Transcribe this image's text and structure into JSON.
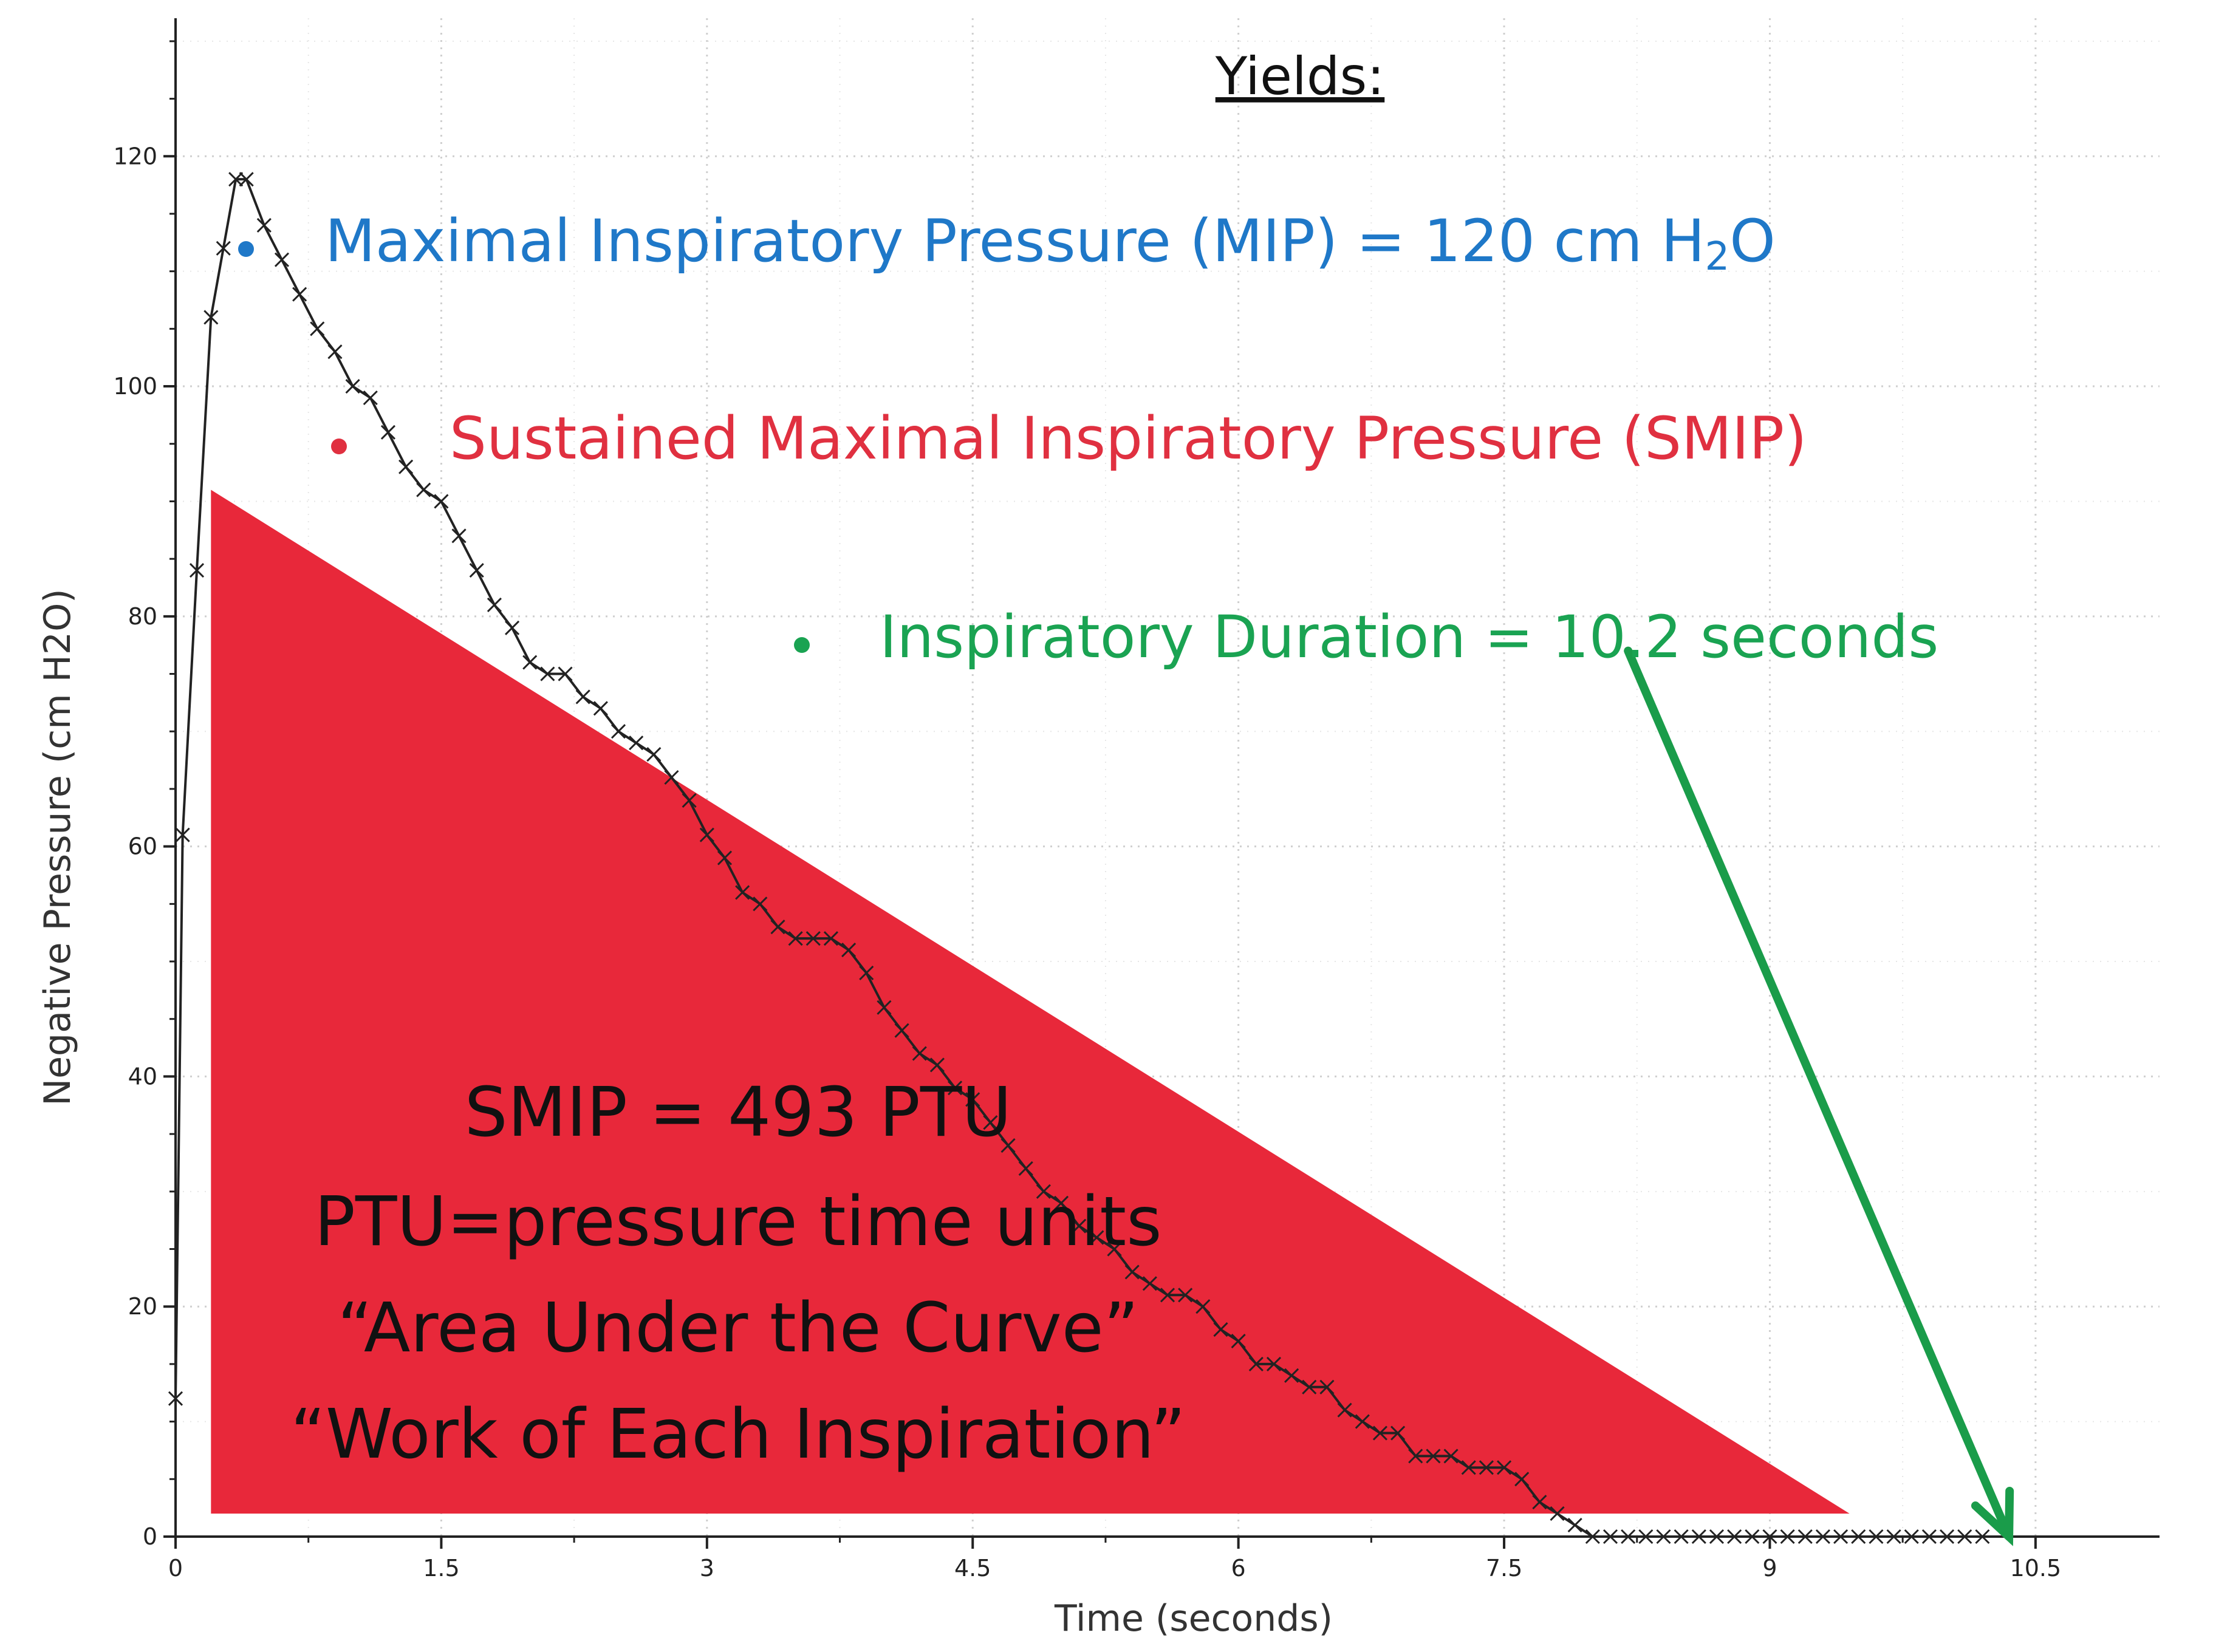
{
  "chart_data": {
    "type": "line",
    "title": "",
    "xlabel": "Time (seconds)",
    "ylabel": "Negative Pressure (cm H2O)",
    "xlim": [
      0,
      11.2
    ],
    "ylim": [
      0,
      132
    ],
    "xticks": [
      0,
      1.5,
      3,
      4.5,
      6,
      7.5,
      9,
      10.5
    ],
    "xtick_labels": [
      "0",
      "1.5",
      "3",
      "4.5",
      "6",
      "7.5",
      "9",
      "10.5"
    ],
    "yticks": [
      0,
      20,
      40,
      60,
      80,
      100,
      120
    ],
    "ytick_labels": [
      "0",
      "20",
      "40",
      "60",
      "80",
      "100",
      "120"
    ],
    "grid": true,
    "series": [
      {
        "name": "Negative Pressure",
        "color": "#222222",
        "marker": "x",
        "x": [
          0,
          0.04,
          0.12,
          0.2,
          0.27,
          0.34,
          0.4,
          0.5,
          0.6,
          0.7,
          0.8,
          0.9,
          1.0,
          1.1,
          1.2,
          1.3,
          1.4,
          1.5,
          1.6,
          1.7,
          1.8,
          1.9,
          2.0,
          2.1,
          2.2,
          2.3,
          2.4,
          2.5,
          2.6,
          2.7,
          2.8,
          2.9,
          3.0,
          3.1,
          3.2,
          3.3,
          3.4,
          3.5,
          3.6,
          3.7,
          3.8,
          3.9,
          4.0,
          4.1,
          4.2,
          4.3,
          4.4,
          4.5,
          4.6,
          4.7,
          4.8,
          4.9,
          5.0,
          5.1,
          5.2,
          5.3,
          5.4,
          5.5,
          5.6,
          5.7,
          5.8,
          5.9,
          6.0,
          6.1,
          6.2,
          6.3,
          6.4,
          6.5,
          6.6,
          6.7,
          6.8,
          6.9,
          7.0,
          7.1,
          7.2,
          7.3,
          7.4,
          7.5,
          7.6,
          7.7,
          7.8,
          7.9,
          8.0,
          8.1,
          8.2,
          8.3,
          8.4,
          8.5,
          8.6,
          8.7,
          8.8,
          8.9,
          9.0,
          9.1,
          9.2,
          9.3,
          9.4,
          9.5,
          9.6,
          9.7,
          9.8,
          9.9,
          10.0,
          10.1,
          10.2
        ],
        "y": [
          12,
          61,
          84,
          106,
          112,
          118,
          118,
          114,
          111,
          108,
          105,
          103,
          100,
          99,
          96,
          93,
          91,
          90,
          87,
          84,
          81,
          79,
          76,
          75,
          75,
          73,
          72,
          70,
          69,
          68,
          66,
          64,
          61,
          59,
          56,
          55,
          53,
          52,
          52,
          52,
          51,
          49,
          46,
          44,
          42,
          41,
          39,
          38,
          36,
          34,
          32,
          30,
          29,
          27,
          26,
          25,
          23,
          22,
          21,
          21,
          20,
          18,
          17,
          15,
          15,
          14,
          13,
          13,
          11,
          10,
          9,
          9,
          7,
          7,
          7,
          6,
          6,
          6,
          5,
          3,
          2,
          1,
          0,
          0,
          0,
          0,
          0,
          0,
          0,
          0,
          0,
          0,
          0,
          0,
          0,
          0,
          0,
          0,
          0,
          0,
          0,
          0,
          0,
          0,
          0
        ]
      }
    ],
    "shaded_triangle": {
      "label": "SMIP area",
      "color": "#e8283a",
      "points": [
        [
          0.2,
          91
        ],
        [
          0.2,
          2
        ],
        [
          9.45,
          2
        ]
      ]
    },
    "arrow": {
      "color": "#1a9c4a",
      "from": [
        8.2,
        77
      ],
      "to": [
        10.35,
        0
      ]
    }
  },
  "annotations": {
    "yields_title": "Yields:",
    "mip_text_prefix": "Maximal Inspiratory Pressure (MIP) = 120 cm H",
    "mip_subscript": "2",
    "mip_text_suffix": "O",
    "mip_color": "#1f78c8",
    "smip_text": "Sustained Maximal Inspiratory Pressure (SMIP)",
    "smip_color": "#e03040",
    "duration_text": "Inspiratory Duration = 10.2 seconds",
    "duration_color": "#1aa352",
    "box_lines": [
      "SMIP = 493 PTU",
      "PTU=pressure time units",
      "“Area Under the Curve”",
      "“Work of Each Inspiration”"
    ]
  }
}
